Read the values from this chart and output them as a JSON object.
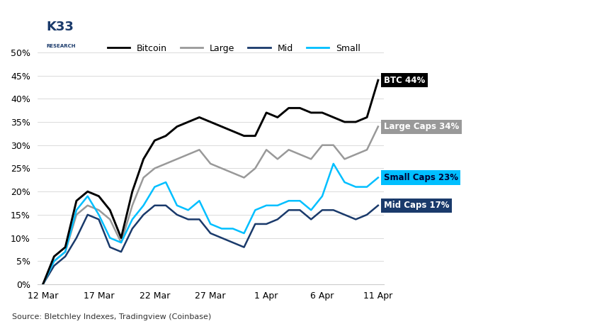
{
  "source": "Source: Bletchley Indexes, Tradingview (Coinbase)",
  "x_labels": [
    "12 Mar",
    "17 Mar",
    "22 Mar",
    "27 Mar",
    "1 Apr",
    "6 Apr",
    "11 Apr"
  ],
  "x_ticks_pos": [
    0,
    5,
    10,
    15,
    20,
    25,
    30
  ],
  "bitcoin": [
    0,
    6,
    8,
    18,
    20,
    19,
    16,
    10,
    20,
    27,
    31,
    32,
    34,
    35,
    36,
    35,
    34,
    33,
    32,
    32,
    37,
    36,
    38,
    38,
    37,
    37,
    36,
    35,
    35,
    36,
    44
  ],
  "large": [
    0,
    5,
    7,
    15,
    17,
    16,
    14,
    9,
    17,
    23,
    25,
    26,
    27,
    28,
    29,
    26,
    25,
    24,
    23,
    25,
    29,
    27,
    29,
    28,
    27,
    30,
    30,
    27,
    28,
    29,
    34
  ],
  "mid": [
    0,
    4,
    6,
    10,
    15,
    14,
    8,
    7,
    12,
    15,
    17,
    17,
    15,
    14,
    14,
    11,
    10,
    9,
    8,
    13,
    13,
    14,
    16,
    16,
    14,
    16,
    16,
    15,
    14,
    15,
    17
  ],
  "small": [
    0,
    5,
    7,
    16,
    19,
    15,
    10,
    9,
    14,
    17,
    21,
    22,
    17,
    16,
    18,
    13,
    12,
    12,
    11,
    16,
    17,
    17,
    18,
    18,
    16,
    19,
    26,
    22,
    21,
    21,
    23
  ],
  "bitcoin_color": "#000000",
  "large_color": "#999999",
  "mid_color": "#1a3a6b",
  "small_color": "#00bfff",
  "btc_label_bg": "#000000",
  "large_label_bg": "#999999",
  "mid_label_bg": "#1a3a6b",
  "small_label_bg": "#00bfff",
  "ylim": [
    0,
    52
  ],
  "yticks": [
    0,
    5,
    10,
    15,
    20,
    25,
    30,
    35,
    40,
    45,
    50
  ],
  "background_color": "#ffffff",
  "end_labels": {
    "btc": "BTC 44%",
    "large": "Large Caps 34%",
    "small": "Small Caps 23%",
    "mid": "Mid Caps 17%"
  },
  "legend_labels": [
    "Bitcoin",
    "Large",
    "Mid",
    "Small"
  ]
}
